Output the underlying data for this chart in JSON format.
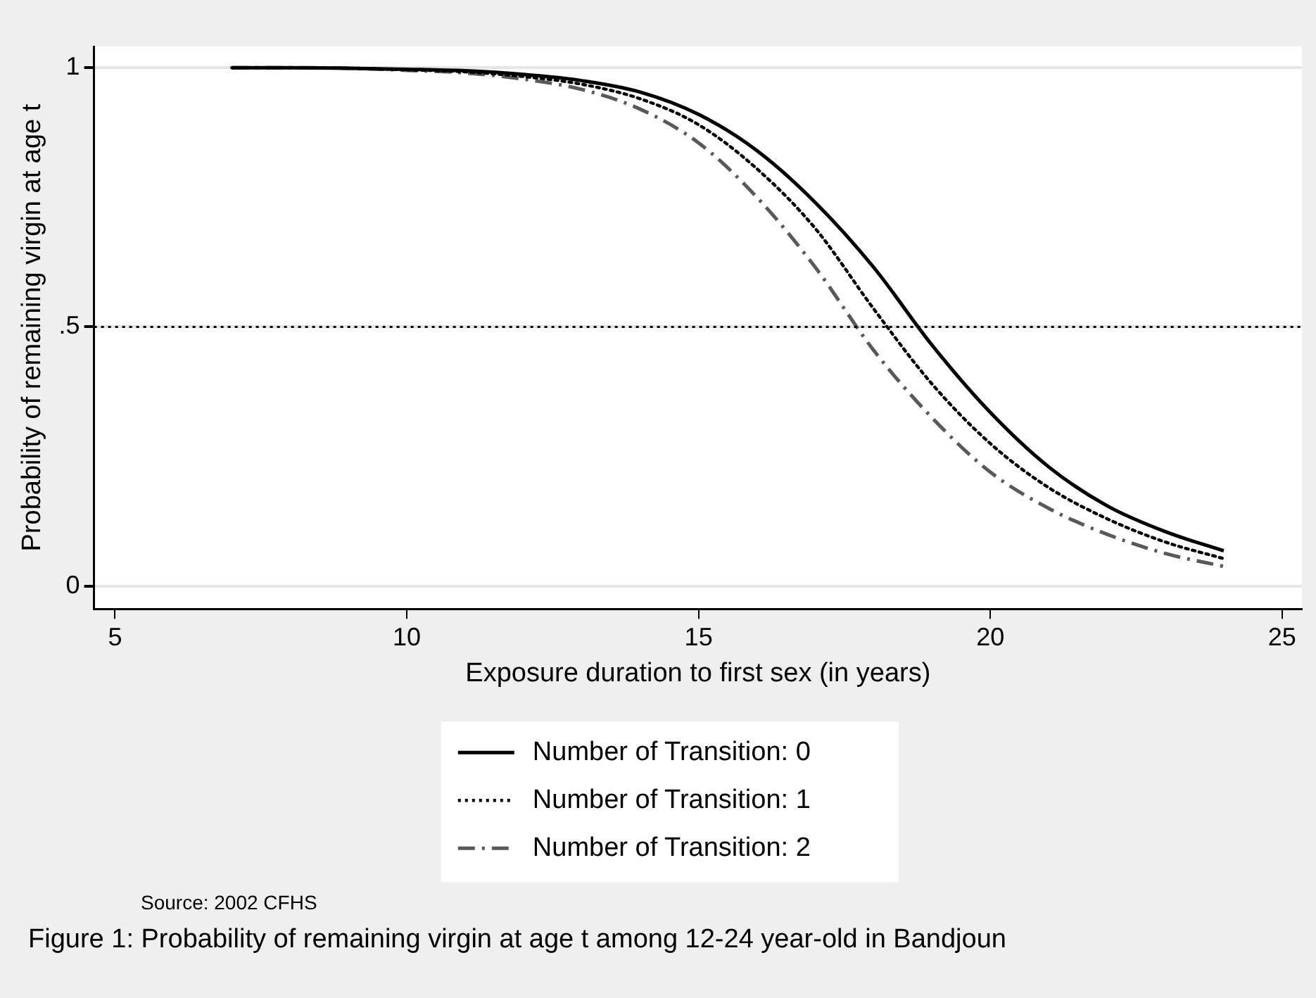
{
  "chart_data": {
    "type": "line",
    "title": "Figure 1: Probability of remaining virgin at age t among 12-24 year-old in Bandjoun",
    "xlabel": "Exposure duration to first sex (in years)",
    "ylabel": "Probability of remaining virgin at age t",
    "annotations": [
      "Source: 2002 CFHS"
    ],
    "x": [
      7,
      8,
      9,
      10,
      11,
      12,
      13,
      14,
      15,
      16,
      17,
      18,
      19,
      20,
      21,
      22,
      23,
      24
    ],
    "series": [
      {
        "name": "Number of Transition: 0",
        "color": "#000000",
        "line_style": "solid",
        "values": [
          1.0,
          1.0,
          0.999,
          0.997,
          0.994,
          0.987,
          0.975,
          0.953,
          0.91,
          0.84,
          0.74,
          0.615,
          0.465,
          0.335,
          0.23,
          0.155,
          0.105,
          0.068
        ]
      },
      {
        "name": "Number of Transition: 1",
        "color": "#000000",
        "line_style": "dotted",
        "values": [
          1.0,
          1.0,
          0.999,
          0.996,
          0.992,
          0.983,
          0.968,
          0.94,
          0.89,
          0.805,
          0.69,
          0.535,
          0.39,
          0.275,
          0.19,
          0.13,
          0.085,
          0.053
        ]
      },
      {
        "name": "Number of Transition: 2",
        "color": "#595959",
        "line_style": "dashdot",
        "values": [
          1.0,
          1.0,
          0.999,
          0.995,
          0.99,
          0.978,
          0.958,
          0.92,
          0.855,
          0.75,
          0.615,
          0.455,
          0.325,
          0.22,
          0.15,
          0.1,
          0.063,
          0.038
        ]
      }
    ],
    "xlim": [
      4.64,
      25.34
    ],
    "ylim": [
      -0.044,
      1.041
    ],
    "xticks": [
      5,
      10,
      15,
      20,
      25
    ],
    "yticks": [
      0,
      {
        "value": 0.5,
        "label": ".5"
      },
      1
    ],
    "ref_lines": [
      {
        "axis": "y",
        "value": 0.5,
        "line_style": "dotted",
        "color": "#000000"
      }
    ],
    "grid": "y",
    "legend": "bottom",
    "marker": "none"
  }
}
